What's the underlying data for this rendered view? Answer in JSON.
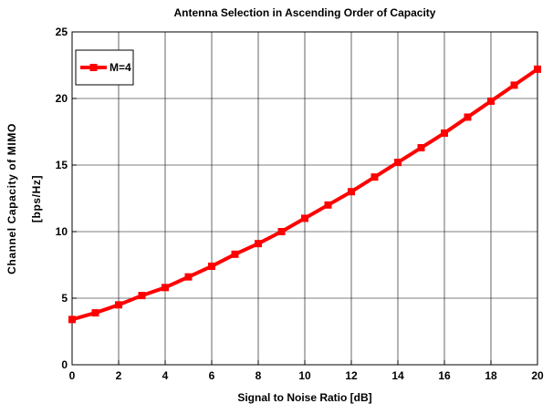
{
  "chart_data": {
    "type": "line",
    "title": "Antenna Selection in Ascending Order of Capacity",
    "xlabel": "Signal to Noise Ratio [dB]",
    "ylabel_lines": [
      "Channel Capacity of MIMO",
      "[bps/Hz]"
    ],
    "xlim": [
      0,
      20
    ],
    "ylim": [
      0,
      25
    ],
    "xticks": [
      "0",
      "2",
      "4",
      "6",
      "8",
      "10",
      "12",
      "14",
      "16",
      "18",
      "20"
    ],
    "yticks": [
      "0",
      "5",
      "10",
      "15",
      "20",
      "25"
    ],
    "grid": true,
    "legend_position": "top-left",
    "series": [
      {
        "name": "M=4",
        "color": "#ff0000",
        "marker": "square",
        "x": [
          0,
          1,
          2,
          3,
          4,
          5,
          6,
          7,
          8,
          9,
          10,
          11,
          12,
          13,
          14,
          15,
          16,
          17,
          18,
          19,
          20
        ],
        "values": [
          3.4,
          3.9,
          4.5,
          5.2,
          5.8,
          6.6,
          7.4,
          8.3,
          9.1,
          10.0,
          11.0,
          12.0,
          13.0,
          14.1,
          15.2,
          16.3,
          17.4,
          18.6,
          19.8,
          21.0,
          22.2
        ]
      }
    ]
  }
}
